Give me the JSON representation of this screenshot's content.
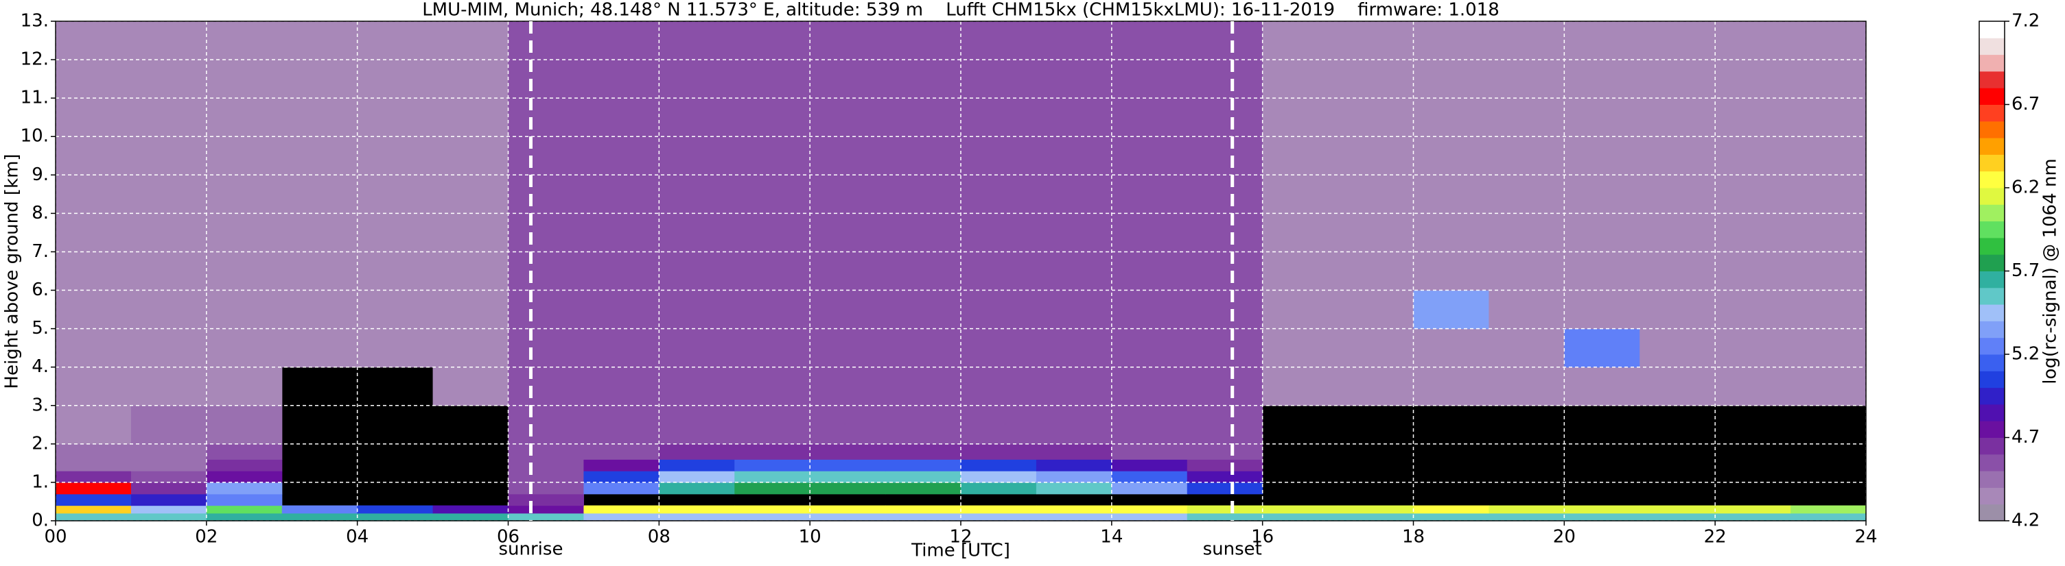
{
  "chart_data": {
    "type": "heatmap",
    "title": "LMU-MIM, Munich; 48.148° N 11.573° E, altitude: 539 m    Lufft CHM15kx (CHM15kxLMU): 16-11-2019    firmware: 1.018",
    "x_label": "Time [UTC]",
    "y_label": "Height above ground [km]",
    "colorbar_label": "log(rc-signal) @ 1064 nm",
    "xlim": [
      0,
      24
    ],
    "ylim": [
      0,
      13
    ],
    "xticks": [
      {
        "value": 0,
        "label": "00"
      },
      {
        "value": 2,
        "label": "02"
      },
      {
        "value": 4,
        "label": "04"
      },
      {
        "value": 6,
        "label": "06"
      },
      {
        "value": 8,
        "label": "08"
      },
      10,
      12,
      14,
      16,
      18,
      20,
      22,
      24
    ],
    "yticks": [
      {
        "value": 0,
        "label": "0."
      },
      {
        "value": 1,
        "label": "1."
      },
      {
        "value": 2,
        "label": "2."
      },
      {
        "value": 3,
        "label": "3."
      },
      {
        "value": 4,
        "label": "4."
      },
      {
        "value": 5,
        "label": "5."
      },
      {
        "value": 6,
        "label": "6."
      },
      {
        "value": 7,
        "label": "7."
      },
      {
        "value": 8,
        "label": "8."
      },
      {
        "value": 9,
        "label": "9."
      },
      {
        "value": 10,
        "label": "10."
      },
      {
        "value": 11,
        "label": "11."
      },
      {
        "value": 12,
        "label": "12."
      },
      {
        "value": 13,
        "label": "13."
      }
    ],
    "grid": true,
    "background": "#000000",
    "clim": [
      4.2,
      7.2
    ],
    "cticks": [
      4.2,
      4.7,
      5.2,
      5.7,
      6.2,
      6.7,
      7.2
    ],
    "colormap": [
      "#9c8fa8",
      "#a888b8",
      "#9a70b0",
      "#8a50a8",
      "#7a30a0",
      "#6a10a0",
      "#5010b0",
      "#3020c8",
      "#2040e0",
      "#3a60f0",
      "#6080f8",
      "#80a0f8",
      "#a0c0f8",
      "#60c8c8",
      "#30b0a0",
      "#20a050",
      "#30c040",
      "#60e060",
      "#a0f060",
      "#e0f840",
      "#ffff40",
      "#ffd020",
      "#ffa000",
      "#ff7000",
      "#ff4020",
      "#ff0000",
      "#e83030",
      "#f0b0b0",
      "#f0e0e0",
      "#ffffff"
    ],
    "x": [
      0,
      1,
      2,
      3,
      4,
      5,
      6,
      7,
      8,
      9,
      10,
      11,
      12,
      13,
      14,
      15,
      16,
      17,
      18,
      19,
      20,
      21,
      22,
      23,
      24
    ],
    "y": [
      0,
      0.2,
      0.4,
      0.7,
      1,
      1.3,
      1.6,
      2,
      3,
      4,
      5,
      6,
      7,
      8,
      9,
      10,
      11,
      12,
      13
    ],
    "z": [
      [
        5.5,
        5.5,
        5.6,
        5.6,
        5.6,
        5.6,
        5.5,
        5.4,
        5.4,
        5.4,
        5.4,
        5.4,
        5.4,
        5.4,
        5.4,
        5.5,
        5.5,
        5.5,
        5.5,
        5.5,
        5.5,
        5.5,
        5.5,
        5.5
      ],
      [
        6.3,
        5.4,
        5.9,
        5.2,
        5.0,
        4.8,
        4.7,
        6.2,
        6.2,
        6.2,
        6.2,
        6.2,
        6.2,
        6.2,
        6.2,
        6.1,
        6.1,
        6.1,
        6.2,
        6.1,
        6.1,
        6.1,
        6.1,
        6.0
      ],
      [
        5.0,
        4.9,
        5.2,
        null,
        null,
        null,
        4.6,
        null,
        null,
        null,
        null,
        null,
        null,
        null,
        null,
        null,
        null,
        null,
        null,
        null,
        null,
        null,
        null,
        null
      ],
      [
        6.7,
        4.6,
        5.3,
        null,
        null,
        null,
        4.5,
        5.2,
        5.6,
        5.7,
        5.7,
        5.7,
        5.6,
        5.5,
        5.3,
        5.0,
        null,
        null,
        null,
        null,
        null,
        null,
        null,
        null
      ],
      [
        4.6,
        4.5,
        4.7,
        null,
        null,
        null,
        4.5,
        5.0,
        5.4,
        5.5,
        5.5,
        5.5,
        5.4,
        5.3,
        5.1,
        4.8,
        null,
        null,
        null,
        null,
        null,
        null,
        null,
        null
      ],
      [
        4.4,
        4.4,
        4.6,
        null,
        null,
        null,
        4.5,
        4.7,
        5.0,
        5.1,
        5.1,
        5.1,
        5.0,
        4.9,
        4.8,
        4.6,
        null,
        null,
        null,
        null,
        null,
        null,
        null,
        null
      ],
      [
        4.4,
        4.4,
        4.5,
        null,
        null,
        null,
        4.5,
        4.5,
        4.6,
        4.6,
        4.6,
        4.6,
        4.6,
        4.6,
        4.5,
        4.5,
        null,
        null,
        null,
        null,
        null,
        null,
        null,
        null
      ],
      [
        4.3,
        4.4,
        4.4,
        null,
        null,
        null,
        4.5,
        4.5,
        4.5,
        4.5,
        4.5,
        4.5,
        4.5,
        4.5,
        4.5,
        4.5,
        null,
        null,
        null,
        null,
        null,
        null,
        null,
        null
      ],
      [
        4.3,
        4.3,
        4.3,
        null,
        null,
        4.3,
        4.5,
        4.5,
        4.5,
        4.5,
        4.5,
        4.5,
        4.5,
        4.5,
        4.5,
        4.5,
        4.3,
        4.3,
        4.3,
        4.3,
        4.3,
        4.3,
        4.3,
        4.3
      ],
      [
        4.3,
        4.3,
        4.3,
        4.3,
        4.3,
        4.3,
        4.5,
        4.5,
        4.5,
        4.5,
        4.5,
        4.5,
        4.5,
        4.5,
        4.5,
        4.5,
        4.3,
        4.3,
        4.3,
        4.3,
        5.2,
        4.3,
        4.3,
        4.3
      ],
      [
        4.3,
        4.3,
        4.3,
        4.3,
        4.3,
        4.3,
        4.5,
        4.5,
        4.5,
        4.5,
        4.5,
        4.5,
        4.5,
        4.5,
        4.5,
        4.5,
        4.3,
        4.3,
        5.3,
        4.3,
        4.3,
        4.3,
        4.3,
        4.3
      ],
      [
        4.3,
        4.3,
        4.3,
        4.3,
        4.3,
        4.3,
        4.5,
        4.5,
        4.5,
        4.5,
        4.5,
        4.5,
        4.5,
        4.5,
        4.5,
        4.5,
        4.3,
        4.3,
        4.3,
        4.3,
        4.3,
        4.3,
        4.3,
        4.3
      ],
      [
        4.3,
        4.3,
        4.3,
        4.3,
        4.3,
        4.3,
        4.5,
        4.5,
        4.5,
        4.5,
        4.5,
        4.5,
        4.5,
        4.5,
        4.5,
        4.5,
        4.3,
        4.3,
        4.3,
        4.3,
        4.3,
        4.3,
        4.3,
        4.3
      ],
      [
        4.3,
        4.3,
        4.3,
        4.3,
        4.3,
        4.3,
        4.5,
        4.5,
        4.5,
        4.5,
        4.5,
        4.5,
        4.5,
        4.5,
        4.5,
        4.5,
        4.3,
        4.3,
        4.3,
        4.3,
        4.3,
        4.3,
        4.3,
        4.3
      ],
      [
        4.3,
        4.3,
        4.3,
        4.3,
        4.3,
        4.3,
        4.5,
        4.5,
        4.5,
        4.5,
        4.5,
        4.5,
        4.5,
        4.5,
        4.5,
        4.5,
        4.3,
        4.3,
        4.3,
        4.3,
        4.3,
        4.3,
        4.3,
        4.3
      ],
      [
        4.3,
        4.3,
        4.3,
        4.3,
        4.3,
        4.3,
        4.5,
        4.5,
        4.5,
        4.5,
        4.5,
        4.5,
        4.5,
        4.5,
        4.5,
        4.5,
        4.3,
        4.3,
        4.3,
        4.3,
        4.3,
        4.3,
        4.3,
        4.3
      ],
      [
        4.3,
        4.3,
        4.3,
        4.3,
        4.3,
        4.3,
        4.5,
        4.5,
        4.5,
        4.5,
        4.5,
        4.5,
        4.5,
        4.5,
        4.5,
        4.5,
        4.3,
        4.3,
        4.3,
        4.3,
        4.3,
        4.3,
        4.3,
        4.3
      ],
      [
        4.3,
        4.3,
        4.3,
        4.3,
        4.3,
        4.3,
        4.5,
        4.5,
        4.5,
        4.5,
        4.5,
        4.5,
        4.5,
        4.5,
        4.5,
        4.5,
        4.3,
        4.3,
        4.3,
        4.3,
        4.3,
        4.3,
        4.3,
        4.3
      ]
    ],
    "annotations": [
      {
        "text": "sunrise",
        "x": 6.3
      },
      {
        "text": "sunset",
        "x": 15.6
      }
    ]
  }
}
